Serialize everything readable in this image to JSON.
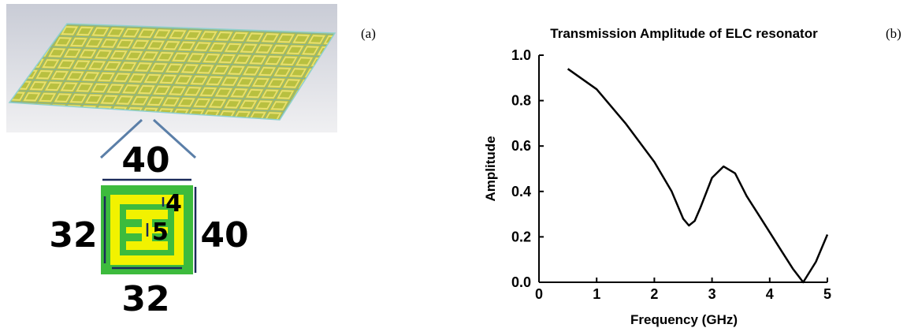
{
  "figure": {
    "panel_a": "(a)",
    "panel_b": "(b)",
    "dimensions": {
      "top": "40",
      "right": "40",
      "left": "32",
      "bottom": "32",
      "gap": "4",
      "finger": "5"
    }
  },
  "chart_data": {
    "type": "line",
    "title": "Transmission Amplitude of ELC resonator",
    "x_label": "Frequency (GHz)",
    "y_label": "Amplitude",
    "x": [
      0.5,
      1.0,
      1.5,
      2.0,
      2.3,
      2.5,
      2.6,
      2.7,
      2.8,
      3.0,
      3.2,
      3.4,
      3.6,
      3.8,
      4.0,
      4.2,
      4.4,
      4.58,
      4.8,
      5.0
    ],
    "values": [
      0.94,
      0.85,
      0.7,
      0.53,
      0.4,
      0.28,
      0.25,
      0.27,
      0.33,
      0.46,
      0.51,
      0.48,
      0.38,
      0.3,
      0.22,
      0.14,
      0.06,
      0.0,
      0.09,
      0.21
    ],
    "color": "#000000",
    "xlim": [
      0,
      5
    ],
    "ylim": [
      0,
      1.0
    ],
    "xticks": [
      0,
      1,
      2,
      3,
      4,
      5
    ],
    "yticks": [
      {
        "value": 0,
        "label": "0.0"
      },
      0.2,
      0.4,
      0.6,
      0.8,
      {
        "value": 1.0,
        "label": "1.0"
      }
    ]
  }
}
